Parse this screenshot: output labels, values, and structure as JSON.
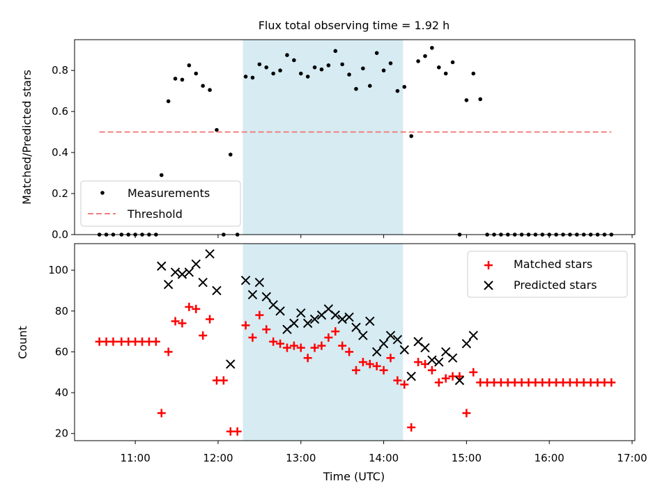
{
  "title": "Flux total observing time = 1.92 h",
  "shaded_region": {
    "start": "12:18",
    "end": "14:14",
    "color": "#add8e6"
  },
  "chart_data": [
    {
      "type": "scatter",
      "ylabel": "Matched/Predicted stars",
      "ylim": [
        0,
        0.95
      ],
      "yticks": [
        0.0,
        0.2,
        0.4,
        0.6,
        0.8
      ],
      "ytick_labels": [
        "0.0",
        "0.2",
        "0.4",
        "0.6",
        "0.8"
      ],
      "legend": {
        "position": "lower-left",
        "entries": [
          "Measurements",
          "Threshold"
        ]
      },
      "series": [
        {
          "name": "Measurements",
          "marker": "dot",
          "color": "#000000",
          "x": [
            "10:34",
            "10:39",
            "10:44",
            "10:50",
            "10:55",
            "11:00",
            "11:05",
            "11:10",
            "11:15",
            "11:19",
            "11:24",
            "11:29",
            "11:34",
            "11:39",
            "11:44",
            "11:49",
            "11:54",
            "11:59",
            "12:04",
            "12:09",
            "12:14",
            "12:20",
            "12:25",
            "12:30",
            "12:35",
            "12:40",
            "12:45",
            "12:50",
            "12:55",
            "13:00",
            "13:05",
            "13:10",
            "13:15",
            "13:20",
            "13:25",
            "13:30",
            "13:35",
            "13:40",
            "13:45",
            "13:50",
            "13:55",
            "14:00",
            "14:05",
            "14:10",
            "14:15",
            "14:20",
            "14:25",
            "14:30",
            "14:35",
            "14:40",
            "14:45",
            "14:50",
            "14:55",
            "15:00",
            "15:05",
            "15:10",
            "15:15",
            "15:20",
            "15:25",
            "15:30",
            "15:35",
            "15:40",
            "15:45",
            "15:50",
            "15:55",
            "16:00",
            "16:05",
            "16:10",
            "16:15",
            "16:20",
            "16:25",
            "16:30",
            "16:35",
            "16:40",
            "16:45"
          ],
          "y": [
            0,
            0,
            0,
            0,
            0,
            0,
            0,
            0,
            0,
            0.29,
            0.65,
            0.76,
            0.755,
            0.825,
            0.785,
            0.725,
            0.705,
            0.51,
            0,
            0.39,
            0,
            0.77,
            0.765,
            0.83,
            0.815,
            0.785,
            0.8,
            0.875,
            0.85,
            0.785,
            0.77,
            0.815,
            0.805,
            0.825,
            0.895,
            0.83,
            0.78,
            0.71,
            0.81,
            0.725,
            0.885,
            0.8,
            0.835,
            0.7,
            0.72,
            0.48,
            0.845,
            0.87,
            0.91,
            0.815,
            0.785,
            0.84,
            0,
            0.655,
            0.785,
            0.66,
            0,
            0,
            0,
            0,
            0,
            0,
            0,
            0,
            0,
            0,
            0,
            0,
            0,
            0,
            0,
            0,
            0,
            0,
            0
          ]
        },
        {
          "name": "Threshold",
          "line": "dashed",
          "color": "#f08080",
          "x": [
            "10:34",
            "16:45"
          ],
          "y": [
            0.5,
            0.5
          ]
        }
      ]
    },
    {
      "type": "scatter",
      "xlabel": "Time (UTC)",
      "ylabel": "Count",
      "ylim": [
        16.5,
        113
      ],
      "yticks": [
        20,
        40,
        60,
        80,
        100
      ],
      "ytick_labels": [
        "20",
        "40",
        "60",
        "80",
        "100"
      ],
      "xticks": [
        "11:00",
        "12:00",
        "13:00",
        "14:00",
        "15:00",
        "16:00",
        "17:00"
      ],
      "xtick_labels": [
        "11:00",
        "12:00",
        "13:00",
        "14:00",
        "15:00",
        "16:00",
        "17:00"
      ],
      "legend": {
        "position": "top-right",
        "entries": [
          "Matched stars",
          "Predicted stars"
        ]
      },
      "series": [
        {
          "name": "Matched stars",
          "marker": "plus",
          "color": "#ff0000",
          "x": [
            "10:34",
            "10:39",
            "10:44",
            "10:50",
            "10:55",
            "11:00",
            "11:05",
            "11:10",
            "11:15",
            "11:19",
            "11:24",
            "11:29",
            "11:34",
            "11:39",
            "11:44",
            "11:49",
            "11:54",
            "11:59",
            "12:04",
            "12:09",
            "12:14",
            "12:20",
            "12:25",
            "12:30",
            "12:35",
            "12:40",
            "12:45",
            "12:50",
            "12:55",
            "13:00",
            "13:05",
            "13:10",
            "13:15",
            "13:20",
            "13:25",
            "13:30",
            "13:35",
            "13:40",
            "13:45",
            "13:50",
            "13:55",
            "14:00",
            "14:05",
            "14:10",
            "14:15",
            "14:20",
            "14:25",
            "14:30",
            "14:35",
            "14:40",
            "14:45",
            "14:50",
            "14:55",
            "15:00",
            "15:05",
            "15:10",
            "15:15",
            "15:20",
            "15:25",
            "15:30",
            "15:35",
            "15:40",
            "15:45",
            "15:50",
            "15:55",
            "16:00",
            "16:05",
            "16:10",
            "16:15",
            "16:20",
            "16:25",
            "16:30",
            "16:35",
            "16:40",
            "16:45"
          ],
          "y": [
            65,
            65,
            65,
            65,
            65,
            65,
            65,
            65,
            65,
            30,
            60,
            75,
            74,
            82,
            81,
            68,
            76,
            46,
            46,
            21,
            21,
            73,
            67,
            78,
            71,
            65,
            64,
            62,
            63,
            62,
            57,
            62,
            63,
            67,
            70,
            63,
            60,
            51,
            55,
            54,
            53,
            51,
            57,
            46,
            44,
            23,
            55,
            54,
            51,
            45,
            47,
            48,
            48,
            30,
            50,
            45,
            45,
            45,
            45,
            45,
            45,
            45,
            45,
            45,
            45,
            45,
            45,
            45,
            45,
            45,
            45,
            45,
            45,
            45,
            45
          ]
        },
        {
          "name": "Predicted stars",
          "marker": "x",
          "color": "#000000",
          "x": [
            "11:19",
            "11:24",
            "11:29",
            "11:34",
            "11:39",
            "11:44",
            "11:49",
            "11:54",
            "11:59",
            "12:09",
            "12:20",
            "12:25",
            "12:30",
            "12:35",
            "12:40",
            "12:45",
            "12:50",
            "12:55",
            "13:00",
            "13:05",
            "13:10",
            "13:15",
            "13:20",
            "13:25",
            "13:30",
            "13:35",
            "13:40",
            "13:45",
            "13:50",
            "13:55",
            "14:00",
            "14:05",
            "14:10",
            "14:15",
            "14:20",
            "14:25",
            "14:30",
            "14:35",
            "14:40",
            "14:45",
            "14:50",
            "14:55",
            "15:00",
            "15:05"
          ],
          "y": [
            102,
            93,
            99,
            98,
            99,
            103,
            94,
            108,
            90,
            54,
            95,
            88,
            94,
            87,
            83,
            80,
            71,
            74,
            79,
            74,
            76,
            78,
            81,
            78,
            76,
            77,
            72,
            68,
            75,
            60,
            64,
            68,
            66,
            61,
            48,
            65,
            62,
            56,
            55,
            60,
            57,
            46,
            64,
            68
          ]
        }
      ]
    }
  ]
}
